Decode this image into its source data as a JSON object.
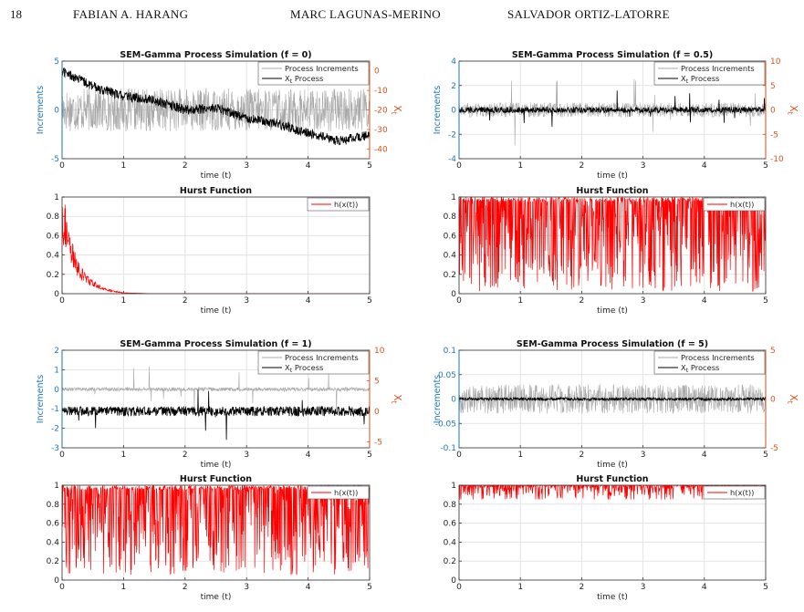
{
  "header": {
    "page_number": "18",
    "authors": [
      "FABIAN A. HARANG",
      "MARC LAGUNAS-MERINO",
      "SALVADOR ORTIZ-LATORRE"
    ]
  },
  "colors": {
    "increments": "#a8a8a8",
    "process": "#000000",
    "hurst": "#ff0000",
    "left_axis": "#1f77b4",
    "right_axis": "#d95319"
  },
  "chart_data": [
    {
      "type": "line",
      "title": "SEM-Gamma Process Simulation (f = 0)",
      "xlabel": "time (t)",
      "ylabel": "Increments",
      "y2label": "X_t",
      "xlim": [
        0,
        5
      ],
      "ylim": [
        -5,
        5
      ],
      "y2lim": [
        -45,
        5
      ],
      "xticks": [
        "0",
        "1",
        "2",
        "3",
        "4",
        "5"
      ],
      "yticks": [
        "-5",
        "0",
        "5"
      ],
      "y2ticks": [
        "0",
        "-10",
        "-20",
        "-30",
        "-40"
      ],
      "legend": {
        "position": "top-right",
        "entries": [
          "Process Increments",
          "X_t Process"
        ]
      },
      "series": [
        {
          "name": "Process Increments",
          "axis": "left",
          "amplitude": 2.2,
          "center": 0
        },
        {
          "name": "X_t Process",
          "axis": "right",
          "x": [
            0,
            0.5,
            1,
            1.5,
            2,
            2.5,
            3,
            3.5,
            4,
            4.5,
            5
          ],
          "y": [
            0,
            -8,
            -13,
            -15,
            -20,
            -19,
            -24,
            -27,
            -32,
            -36,
            -33
          ]
        }
      ]
    },
    {
      "type": "line",
      "title": "Hurst Function",
      "xlabel": "time (t)",
      "ylabel": "",
      "xlim": [
        0,
        5
      ],
      "ylim": [
        0,
        1
      ],
      "xticks": [
        "0",
        "1",
        "2",
        "3",
        "4",
        "5"
      ],
      "yticks": [
        "0",
        "0.2",
        "0.4",
        "0.6",
        "0.8",
        "1"
      ],
      "legend": {
        "position": "top-right",
        "entries": [
          "h(x(t))"
        ]
      },
      "series": [
        {
          "name": "h(x(t))",
          "x": [
            0,
            0.05,
            0.1,
            0.2,
            0.3,
            0.5,
            0.7,
            1.0,
            1.5,
            5
          ],
          "y": [
            0.93,
            0.85,
            0.6,
            0.4,
            0.25,
            0.12,
            0.05,
            0.01,
            0,
            0
          ]
        }
      ]
    },
    {
      "type": "line",
      "title": "SEM-Gamma Process Simulation (f = 0.5)",
      "xlabel": "time (t)",
      "ylabel": "Increments",
      "y2label": "X_t",
      "xlim": [
        0,
        5
      ],
      "ylim": [
        -4,
        4
      ],
      "y2lim": [
        -10,
        10
      ],
      "xticks": [
        "0",
        "1",
        "2",
        "3",
        "4",
        "5"
      ],
      "yticks": [
        "-4",
        "-2",
        "0",
        "2",
        "4"
      ],
      "y2ticks": [
        "10",
        "5",
        "0",
        "-5",
        "-10"
      ],
      "legend": {
        "position": "top-right",
        "entries": [
          "Process Increments",
          "X_t Process"
        ]
      },
      "series": [
        {
          "name": "Process Increments",
          "axis": "left",
          "amplitude": 0.6,
          "spikes": 3.2,
          "center": 0
        },
        {
          "name": "X_t Process",
          "axis": "right",
          "center": 0,
          "amplitude": 0.6,
          "spikes": 4.5
        }
      ]
    },
    {
      "type": "line",
      "title": "Hurst Function",
      "xlabel": "time (t)",
      "ylabel": "",
      "xlim": [
        0,
        5
      ],
      "ylim": [
        0,
        1
      ],
      "xticks": [
        "0",
        "1",
        "2",
        "3",
        "4",
        "5"
      ],
      "yticks": [
        "0",
        "0.2",
        "0.4",
        "0.6",
        "0.8",
        "1"
      ],
      "legend": {
        "position": "top-right",
        "entries": [
          "h(x(t))"
        ]
      },
      "series": [
        {
          "name": "h(x(t))",
          "range": [
            0.02,
            1.0
          ]
        }
      ]
    },
    {
      "type": "line",
      "title": "SEM-Gamma Process Simulation (f = 1)",
      "xlabel": "time (t)",
      "ylabel": "Increments",
      "y2label": "X_t",
      "xlim": [
        0,
        5
      ],
      "ylim": [
        -3,
        2
      ],
      "y2lim": [
        -6,
        10
      ],
      "xticks": [
        "0",
        "1",
        "2",
        "3",
        "4",
        "5"
      ],
      "yticks": [
        "-3",
        "-2",
        "-1",
        "0",
        "1",
        "2"
      ],
      "y2ticks": [
        "10",
        "5",
        "0",
        "-5"
      ],
      "legend": {
        "position": "top-right",
        "entries": [
          "Process Increments",
          "X_t Process"
        ]
      },
      "series": [
        {
          "name": "Process Increments",
          "axis": "left",
          "amplitude": 0.1,
          "spikes": 1.3,
          "center": 0
        },
        {
          "name": "X_t Process",
          "axis": "right",
          "center": 0,
          "amplitude": 0.8,
          "spikes": 5
        }
      ]
    },
    {
      "type": "line",
      "title": "Hurst Function",
      "xlabel": "time (t)",
      "ylabel": "",
      "xlim": [
        0,
        5
      ],
      "ylim": [
        0,
        1
      ],
      "xticks": [
        "0",
        "1",
        "2",
        "3",
        "4",
        "5"
      ],
      "yticks": [
        "0",
        "0.2",
        "0.4",
        "0.6",
        "0.8",
        "1"
      ],
      "legend": {
        "position": "top-right",
        "entries": [
          "h(x(t))"
        ]
      },
      "series": [
        {
          "name": "h(x(t))",
          "range": [
            0.05,
            1.0
          ]
        }
      ]
    },
    {
      "type": "line",
      "title": "SEM-Gamma Process Simulation (f = 5)",
      "xlabel": "time (t)",
      "ylabel": "Increments",
      "y2label": "X_t",
      "xlim": [
        0,
        5
      ],
      "ylim": [
        -0.1,
        0.1
      ],
      "y2lim": [
        -5,
        5
      ],
      "xticks": [
        "0",
        "1",
        "2",
        "3",
        "4",
        "5"
      ],
      "yticks": [
        "-0.1",
        "-0.05",
        "0",
        "0.05",
        "0.1"
      ],
      "y2ticks": [
        "5",
        "0",
        "-5"
      ],
      "legend": {
        "position": "top-right",
        "entries": [
          "Process Increments",
          "X_t Process"
        ]
      },
      "series": [
        {
          "name": "Process Increments",
          "axis": "left",
          "amplitude": 0.03,
          "center": 0
        },
        {
          "name": "X_t Process",
          "axis": "right",
          "center": 0,
          "amplitude": 0.15
        }
      ]
    },
    {
      "type": "line",
      "title": "Hurst Function",
      "xlabel": "time (t)",
      "ylabel": "",
      "xlim": [
        0,
        5
      ],
      "ylim": [
        0,
        1
      ],
      "xticks": [
        "0",
        "1",
        "2",
        "3",
        "4",
        "5"
      ],
      "yticks": [
        "0",
        "0.2",
        "0.4",
        "0.6",
        "0.8",
        "1"
      ],
      "legend": {
        "position": "top-right",
        "entries": [
          "h(x(t))"
        ]
      },
      "series": [
        {
          "name": "h(x(t))",
          "range": [
            0.85,
            1.0
          ]
        }
      ]
    }
  ]
}
